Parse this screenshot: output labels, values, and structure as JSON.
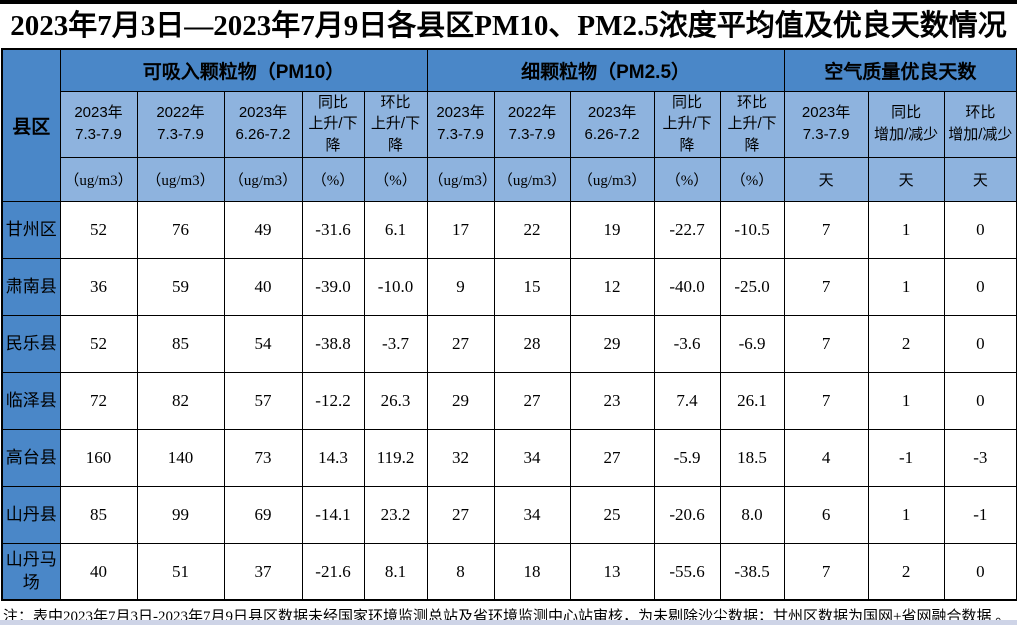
{
  "page": {
    "title": "2023年7月3日—2023年7月9日各县区PM10、PM2.5浓度平均值及优良天数情况",
    "note": "注：表中2023年7月3日-2023年7月9日县区数据未经国家环境监测总站及省环境监测中心站审核，为未剔除沙尘数据；甘州区数据为国网+省网融合数据 。"
  },
  "colors": {
    "group_header_blue": "#4a87c8",
    "sub_header_blue": "#8eb3de",
    "border": "#000000",
    "bottom_strip": "#ced4e7"
  },
  "table": {
    "corner_label": "县区",
    "groups": [
      {
        "label": "可吸入颗粒物（PM10）",
        "span": 5
      },
      {
        "label": "细颗粒物（PM2.5）",
        "span": 5
      },
      {
        "label": "空气质量优良天数",
        "span": 3
      }
    ],
    "columns": [
      {
        "line1": "2023年",
        "line2": "7.3-7.9",
        "unit": "（ug/m3）"
      },
      {
        "line1": "2022年",
        "line2": "7.3-7.9",
        "unit": "（ug/m3）"
      },
      {
        "line1": "2023年",
        "line2": "6.26-7.2",
        "unit": "（ug/m3）"
      },
      {
        "line1": "同比",
        "line2": "上升/下降",
        "unit": "（%）"
      },
      {
        "line1": "环比",
        "line2": "上升/下降",
        "unit": "（%）"
      },
      {
        "line1": "2023年",
        "line2": "7.3-7.9",
        "unit": "（ug/m3）"
      },
      {
        "line1": "2022年",
        "line2": "7.3-7.9",
        "unit": "（ug/m3）"
      },
      {
        "line1": "2023年",
        "line2": "6.26-7.2",
        "unit": "（ug/m3）"
      },
      {
        "line1": "同比",
        "line2": "上升/下降",
        "unit": "（%）"
      },
      {
        "line1": "环比",
        "line2": "上升/下降",
        "unit": "（%）"
      },
      {
        "line1": "2023年",
        "line2": "7.3-7.9",
        "unit": "天"
      },
      {
        "line1": "同比",
        "line2": "增加/减少",
        "unit": "天"
      },
      {
        "line1": "环比",
        "line2": "增加/减少",
        "unit": "天"
      }
    ],
    "rows": [
      {
        "name": "甘州区",
        "values": [
          "52",
          "76",
          "49",
          "-31.6",
          "6.1",
          "17",
          "22",
          "19",
          "-22.7",
          "-10.5",
          "7",
          "1",
          "0"
        ]
      },
      {
        "name": "肃南县",
        "values": [
          "36",
          "59",
          "40",
          "-39.0",
          "-10.0",
          "9",
          "15",
          "12",
          "-40.0",
          "-25.0",
          "7",
          "1",
          "0"
        ]
      },
      {
        "name": "民乐县",
        "values": [
          "52",
          "85",
          "54",
          "-38.8",
          "-3.7",
          "27",
          "28",
          "29",
          "-3.6",
          "-6.9",
          "7",
          "2",
          "0"
        ]
      },
      {
        "name": "临泽县",
        "values": [
          "72",
          "82",
          "57",
          "-12.2",
          "26.3",
          "29",
          "27",
          "23",
          "7.4",
          "26.1",
          "7",
          "1",
          "0"
        ]
      },
      {
        "name": "高台县",
        "values": [
          "160",
          "140",
          "73",
          "14.3",
          "119.2",
          "32",
          "34",
          "27",
          "-5.9",
          "18.5",
          "4",
          "-1",
          "-3"
        ]
      },
      {
        "name": "山丹县",
        "values": [
          "85",
          "99",
          "69",
          "-14.1",
          "23.2",
          "27",
          "34",
          "25",
          "-20.6",
          "8.0",
          "6",
          "1",
          "-1"
        ]
      },
      {
        "name": "山丹马场",
        "values": [
          "40",
          "51",
          "37",
          "-21.6",
          "8.1",
          "8",
          "18",
          "13",
          "-55.6",
          "-38.5",
          "7",
          "2",
          "0"
        ]
      }
    ]
  }
}
